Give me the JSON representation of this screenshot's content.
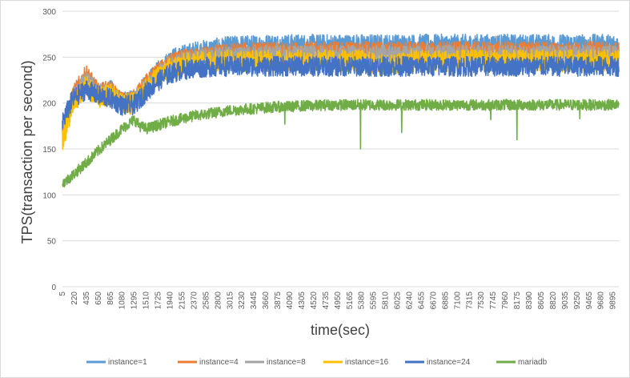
{
  "chart_data": {
    "type": "line",
    "xlabel": "time(sec)",
    "ylabel": "TPS(transaction per second)",
    "ylim": [
      0,
      300
    ],
    "y_ticks": [
      0,
      50,
      100,
      150,
      200,
      250,
      300
    ],
    "x_tick_labels": [
      "5",
      "220",
      "435",
      "650",
      "865",
      "1080",
      "1295",
      "1510",
      "1725",
      "1940",
      "2155",
      "2370",
      "2585",
      "2800",
      "3015",
      "3230",
      "3445",
      "3660",
      "3875",
      "4090",
      "4305",
      "4520",
      "4735",
      "4950",
      "5165",
      "5380",
      "5595",
      "5810",
      "6025",
      "6240",
      "6455",
      "6670",
      "6885",
      "7100",
      "7315",
      "7530",
      "7745",
      "7960",
      "8175",
      "8390",
      "8605",
      "8820",
      "9035",
      "9250",
      "9465",
      "9680",
      "9895"
    ],
    "xlim": [
      5,
      10000
    ],
    "grid": "horizontal",
    "legend_position": "bottom",
    "series": [
      {
        "name": "instance=1",
        "color": "#5b9bd5",
        "noise": 11,
        "points": [
          [
            5,
            170
          ],
          [
            200,
            205
          ],
          [
            435,
            225
          ],
          [
            650,
            210
          ],
          [
            865,
            215
          ],
          [
            1080,
            200
          ],
          [
            1295,
            205
          ],
          [
            1510,
            220
          ],
          [
            1725,
            235
          ],
          [
            1940,
            248
          ],
          [
            2155,
            252
          ],
          [
            2370,
            256
          ],
          [
            2585,
            258
          ],
          [
            2800,
            260
          ],
          [
            3015,
            262
          ],
          [
            3230,
            263
          ],
          [
            3445,
            263
          ],
          [
            3660,
            264
          ],
          [
            3875,
            264
          ],
          [
            4090,
            264
          ],
          [
            4305,
            264
          ],
          [
            4520,
            264
          ],
          [
            4735,
            264
          ],
          [
            4950,
            264
          ],
          [
            5380,
            264
          ],
          [
            5810,
            264
          ],
          [
            6240,
            264
          ],
          [
            6670,
            264
          ],
          [
            7100,
            264
          ],
          [
            7530,
            264
          ],
          [
            7960,
            264
          ],
          [
            8390,
            264
          ],
          [
            8820,
            264
          ],
          [
            9250,
            264
          ],
          [
            9680,
            264
          ],
          [
            9990,
            264
          ]
        ]
      },
      {
        "name": "instance=4",
        "color": "#ed7d31",
        "noise": 10,
        "points": [
          [
            5,
            172
          ],
          [
            200,
            210
          ],
          [
            435,
            232
          ],
          [
            650,
            212
          ],
          [
            865,
            215
          ],
          [
            1080,
            202
          ],
          [
            1295,
            205
          ],
          [
            1510,
            222
          ],
          [
            1725,
            234
          ],
          [
            1940,
            244
          ],
          [
            2155,
            248
          ],
          [
            2370,
            250
          ],
          [
            2585,
            252
          ],
          [
            2800,
            254
          ],
          [
            3015,
            255
          ],
          [
            3230,
            256
          ],
          [
            3445,
            256
          ],
          [
            3660,
            256
          ],
          [
            3875,
            256
          ],
          [
            4090,
            256
          ],
          [
            4305,
            257
          ],
          [
            4520,
            257
          ],
          [
            4735,
            257
          ],
          [
            4950,
            257
          ],
          [
            5380,
            257
          ],
          [
            5810,
            257
          ],
          [
            6240,
            257
          ],
          [
            6670,
            257
          ],
          [
            7100,
            257
          ],
          [
            7530,
            257
          ],
          [
            7960,
            257
          ],
          [
            8390,
            257
          ],
          [
            8820,
            257
          ],
          [
            9250,
            257
          ],
          [
            9680,
            257
          ],
          [
            9990,
            257
          ]
        ]
      },
      {
        "name": "instance=8",
        "color": "#a5a5a5",
        "noise": 10,
        "points": [
          [
            5,
            170
          ],
          [
            200,
            206
          ],
          [
            435,
            226
          ],
          [
            650,
            210
          ],
          [
            865,
            212
          ],
          [
            1080,
            200
          ],
          [
            1295,
            203
          ],
          [
            1510,
            220
          ],
          [
            1725,
            232
          ],
          [
            1940,
            242
          ],
          [
            2155,
            246
          ],
          [
            2370,
            248
          ],
          [
            2585,
            250
          ],
          [
            2800,
            251
          ],
          [
            3015,
            252
          ],
          [
            3230,
            252
          ],
          [
            3445,
            252
          ],
          [
            3660,
            253
          ],
          [
            3875,
            253
          ],
          [
            4090,
            253
          ],
          [
            4305,
            253
          ],
          [
            4520,
            253
          ],
          [
            4735,
            253
          ],
          [
            4950,
            253
          ],
          [
            5380,
            253
          ],
          [
            5810,
            253
          ],
          [
            6240,
            253
          ],
          [
            6670,
            253
          ],
          [
            7100,
            253
          ],
          [
            7530,
            253
          ],
          [
            7960,
            253
          ],
          [
            8390,
            253
          ],
          [
            8820,
            253
          ],
          [
            9250,
            253
          ],
          [
            9680,
            253
          ],
          [
            9990,
            253
          ]
        ]
      },
      {
        "name": "instance=16",
        "color": "#ffc000",
        "noise": 12,
        "points": [
          [
            5,
            160
          ],
          [
            200,
            200
          ],
          [
            435,
            220
          ],
          [
            650,
            205
          ],
          [
            865,
            210
          ],
          [
            1080,
            198
          ],
          [
            1295,
            200
          ],
          [
            1510,
            216
          ],
          [
            1725,
            228
          ],
          [
            1940,
            238
          ],
          [
            2155,
            242
          ],
          [
            2370,
            244
          ],
          [
            2585,
            245
          ],
          [
            2800,
            246
          ],
          [
            3015,
            246
          ],
          [
            3230,
            246
          ],
          [
            3445,
            246
          ],
          [
            3660,
            246
          ],
          [
            3875,
            246
          ],
          [
            4090,
            246
          ],
          [
            4305,
            246
          ],
          [
            4520,
            246
          ],
          [
            4735,
            246
          ],
          [
            4950,
            246
          ],
          [
            5380,
            246
          ],
          [
            5810,
            240
          ],
          [
            6240,
            246
          ],
          [
            6670,
            246
          ],
          [
            7100,
            246
          ],
          [
            7530,
            246
          ],
          [
            7960,
            246
          ],
          [
            8390,
            246
          ],
          [
            8820,
            246
          ],
          [
            9250,
            246
          ],
          [
            9680,
            246
          ],
          [
            9990,
            246
          ]
        ]
      },
      {
        "name": "instance=24",
        "color": "#4472c4",
        "noise": 11,
        "points": [
          [
            5,
            180
          ],
          [
            200,
            205
          ],
          [
            435,
            215
          ],
          [
            650,
            208
          ],
          [
            865,
            205
          ],
          [
            1080,
            197
          ],
          [
            1295,
            198
          ],
          [
            1510,
            212
          ],
          [
            1725,
            224
          ],
          [
            1940,
            232
          ],
          [
            2155,
            236
          ],
          [
            2370,
            238
          ],
          [
            2585,
            239
          ],
          [
            2800,
            240
          ],
          [
            3015,
            240
          ],
          [
            3230,
            240
          ],
          [
            3445,
            240
          ],
          [
            3660,
            240
          ],
          [
            3875,
            240
          ],
          [
            4090,
            240
          ],
          [
            4305,
            240
          ],
          [
            4520,
            240
          ],
          [
            4735,
            240
          ],
          [
            4950,
            240
          ],
          [
            5380,
            240
          ],
          [
            5810,
            240
          ],
          [
            6240,
            240
          ],
          [
            6670,
            240
          ],
          [
            7100,
            240
          ],
          [
            7530,
            240
          ],
          [
            7960,
            240
          ],
          [
            8390,
            240
          ],
          [
            8820,
            240
          ],
          [
            9250,
            240
          ],
          [
            9680,
            240
          ],
          [
            9990,
            240
          ]
        ]
      },
      {
        "name": "mariadb",
        "color": "#70ad47",
        "noise": 6,
        "points": [
          [
            5,
            112
          ],
          [
            200,
            122
          ],
          [
            435,
            135
          ],
          [
            650,
            148
          ],
          [
            865,
            160
          ],
          [
            1080,
            172
          ],
          [
            1295,
            182
          ],
          [
            1400,
            175
          ],
          [
            1510,
            172
          ],
          [
            1725,
            176
          ],
          [
            1940,
            180
          ],
          [
            2155,
            183
          ],
          [
            2370,
            186
          ],
          [
            2585,
            188
          ],
          [
            2800,
            190
          ],
          [
            3015,
            192
          ],
          [
            3230,
            193
          ],
          [
            3445,
            194
          ],
          [
            3660,
            195
          ],
          [
            3875,
            196
          ],
          [
            4090,
            196
          ],
          [
            4305,
            197
          ],
          [
            4520,
            197
          ],
          [
            4735,
            198
          ],
          [
            4950,
            198
          ],
          [
            5380,
            198
          ],
          [
            5810,
            198
          ],
          [
            6240,
            198
          ],
          [
            6670,
            198
          ],
          [
            7100,
            198
          ],
          [
            7530,
            198
          ],
          [
            7960,
            198
          ],
          [
            8390,
            198
          ],
          [
            8820,
            198
          ],
          [
            9250,
            198
          ],
          [
            9680,
            198
          ],
          [
            9990,
            198
          ]
        ],
        "dips": [
          [
            5360,
            150
          ],
          [
            6100,
            168
          ],
          [
            4000,
            177
          ],
          [
            7700,
            182
          ],
          [
            8170,
            160
          ],
          [
            9300,
            183
          ]
        ]
      }
    ]
  }
}
